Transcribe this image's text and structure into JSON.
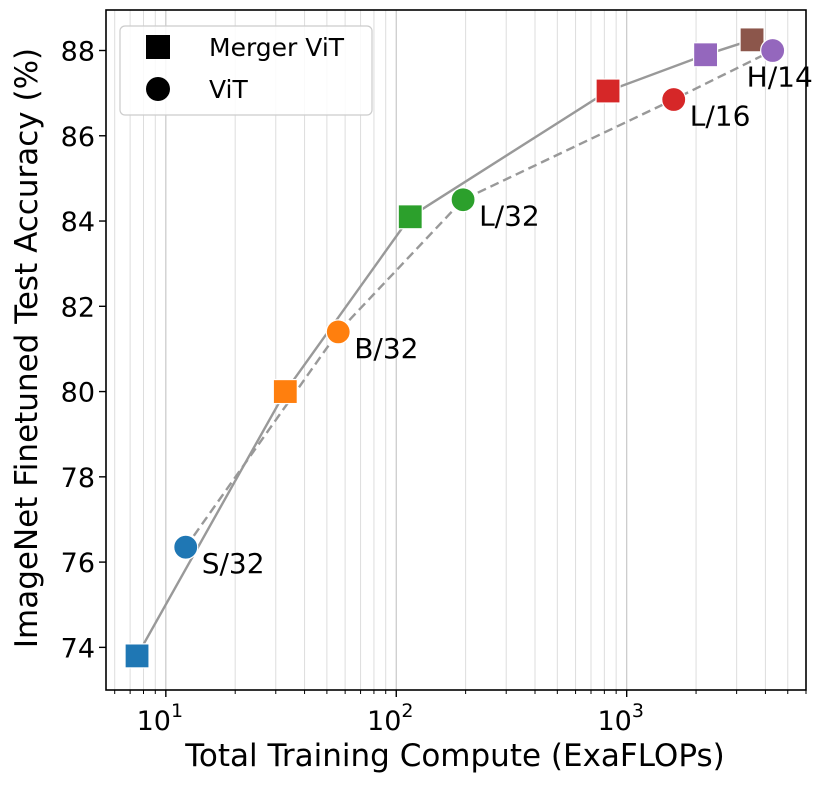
{
  "chart_data": {
    "type": "scatter",
    "title": "",
    "xlabel": "Total Training Compute (ExaFLOPs)",
    "ylabel": "ImageNet Finetuned Test Accuracy (%)",
    "xscale": "log",
    "xlim": [
      5.5,
      6000
    ],
    "ylim": [
      73.0,
      88.95
    ],
    "grid": "vertical minor and major lines on x only",
    "x_ticks": [
      {
        "value": 10,
        "base": "10",
        "exp": "1"
      },
      {
        "value": 100,
        "base": "10",
        "exp": "2"
      },
      {
        "value": 1000,
        "base": "10",
        "exp": "3"
      }
    ],
    "y_ticks": [
      74,
      76,
      78,
      80,
      82,
      84,
      86,
      88
    ],
    "legend": {
      "placement": "top-left",
      "entries": [
        {
          "label": "Merger ViT",
          "marker": "square"
        },
        {
          "label": "ViT",
          "marker": "circle"
        }
      ]
    },
    "series": [
      {
        "name": "Merger ViT",
        "marker": "square",
        "line_style": "solid",
        "line_color": "#999999",
        "points": [
          {
            "x": 7.5,
            "y": 73.8,
            "color": "#1f77b4"
          },
          {
            "x": 33,
            "y": 80.0,
            "color": "#ff7f0e"
          },
          {
            "x": 115,
            "y": 84.1,
            "color": "#2ca02c"
          },
          {
            "x": 830,
            "y": 87.05,
            "color": "#d62728"
          },
          {
            "x": 2200,
            "y": 87.9,
            "color": "#9467bd"
          },
          {
            "x": 3500,
            "y": 88.25,
            "color": "#8c564b"
          }
        ]
      },
      {
        "name": "ViT",
        "marker": "circle",
        "line_style": "dashed",
        "line_color": "#999999",
        "points": [
          {
            "x": 12.2,
            "y": 76.35,
            "color": "#1f77b4",
            "label": "S/32"
          },
          {
            "x": 56,
            "y": 81.4,
            "color": "#ff7f0e",
            "label": "B/32"
          },
          {
            "x": 195,
            "y": 84.5,
            "color": "#2ca02c",
            "label": "L/32"
          },
          {
            "x": 1600,
            "y": 86.85,
            "color": "#d62728",
            "label": "L/16"
          },
          {
            "x": 4300,
            "y": 88.0,
            "color": "#9467bd",
            "label": "H/14"
          }
        ]
      }
    ]
  }
}
